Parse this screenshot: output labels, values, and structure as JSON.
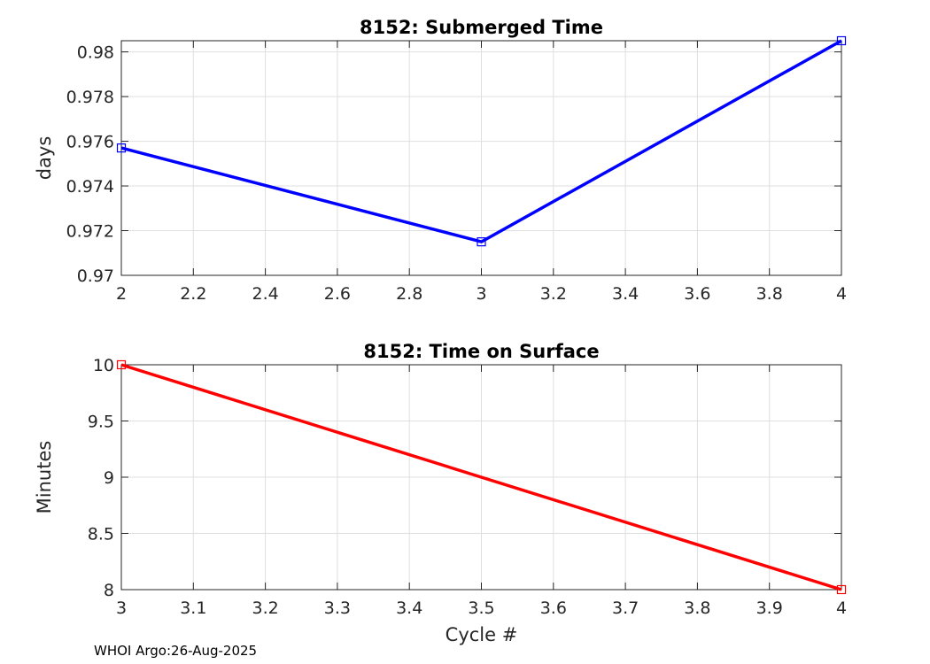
{
  "chart_data": [
    {
      "type": "line",
      "title": "8152: Submerged Time",
      "xlabel": "",
      "ylabel": "days",
      "xlim": [
        2,
        4
      ],
      "ylim": [
        0.97,
        0.9805
      ],
      "xticks": [
        2,
        2.2,
        2.4,
        2.6,
        2.8,
        3,
        3.2,
        3.4,
        3.6,
        3.8,
        4
      ],
      "xtick_labels": [
        "2",
        "2.2",
        "2.4",
        "2.6",
        "2.8",
        "3",
        "3.2",
        "3.4",
        "3.6",
        "3.8",
        "4"
      ],
      "yticks": [
        0.97,
        0.972,
        0.974,
        0.976,
        0.978,
        0.98
      ],
      "ytick_labels": [
        "0.97",
        "0.972",
        "0.974",
        "0.976",
        "0.978",
        "0.98"
      ],
      "grid": true,
      "series": [
        {
          "name": "Submerged Time",
          "color": "#0000ff",
          "marker": "square",
          "x": [
            2,
            3,
            4
          ],
          "y": [
            0.9757,
            0.9715,
            0.9805
          ]
        }
      ]
    },
    {
      "type": "line",
      "title": "8152: Time on Surface",
      "xlabel": "Cycle #",
      "ylabel": "Minutes",
      "xlim": [
        3,
        4
      ],
      "ylim": [
        8,
        10
      ],
      "xticks": [
        3,
        3.1,
        3.2,
        3.3,
        3.4,
        3.5,
        3.6,
        3.7,
        3.8,
        3.9,
        4
      ],
      "xtick_labels": [
        "3",
        "3.1",
        "3.2",
        "3.3",
        "3.4",
        "3.5",
        "3.6",
        "3.7",
        "3.8",
        "3.9",
        "4"
      ],
      "yticks": [
        8,
        8.5,
        9,
        9.5,
        10
      ],
      "ytick_labels": [
        "8",
        "8.5",
        "9",
        "9.5",
        "10"
      ],
      "grid": true,
      "series": [
        {
          "name": "Time on Surface",
          "color": "#ff0000",
          "marker": "square",
          "x": [
            3,
            4
          ],
          "y": [
            10,
            8
          ]
        }
      ]
    }
  ],
  "footer": {
    "note": "WHOI Argo:26-Aug-2025"
  }
}
